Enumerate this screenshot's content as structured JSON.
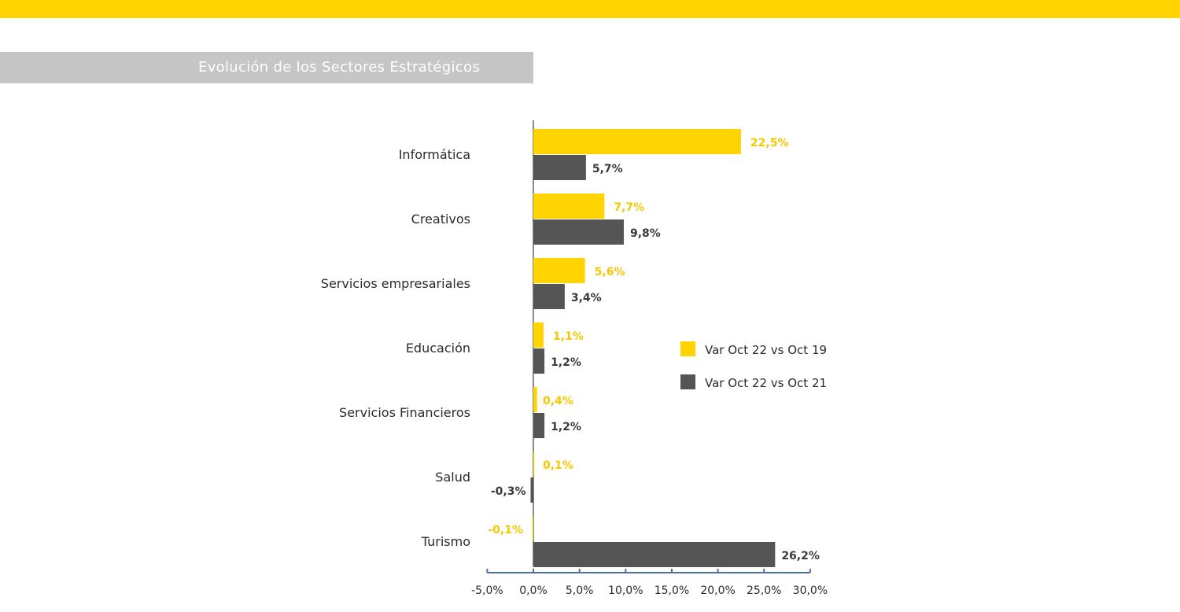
{
  "header": {
    "title": "Evolución de los Sectores Estratégicos"
  },
  "colors": {
    "brand": "#FFD400",
    "series1": "#FFD400",
    "series2": "#555555",
    "title_band": "#C6C6C6",
    "axis": "#4A6FA5"
  },
  "chart_data": {
    "type": "bar",
    "orientation": "horizontal",
    "title": "Evolución de los Sectores Estratégicos",
    "categories": [
      "Informática",
      "Creativos",
      "Servicios empresariales",
      "Educación",
      "Servicios Financieros",
      "Salud",
      "Turismo"
    ],
    "series": [
      {
        "name": "Var Oct 22 vs Oct 19",
        "values": [
          22.5,
          7.7,
          5.6,
          1.1,
          0.4,
          0.1,
          -0.1
        ],
        "labels": [
          "22,5%",
          "7,7%",
          "5,6%",
          "1,1%",
          "0,4%",
          "0,1%",
          "-0,1%"
        ]
      },
      {
        "name": "Var Oct 22 vs Oct 21",
        "values": [
          5.7,
          9.8,
          3.4,
          1.2,
          1.2,
          -0.3,
          26.2
        ],
        "labels": [
          "5,7%",
          "9,8%",
          "3,4%",
          "1,2%",
          "1,2%",
          "-0,3%",
          "26,2%"
        ]
      }
    ],
    "xlim": [
      -5,
      30
    ],
    "xticks": [
      -5,
      0,
      5,
      10,
      15,
      20,
      25,
      30
    ],
    "xtick_labels": [
      "-5,0%",
      "0,0%",
      "5,0%",
      "10,0%",
      "15,0%",
      "20,0%",
      "25,0%",
      "30,0%"
    ],
    "xlabel": "",
    "ylabel": "",
    "legend_position": "right",
    "grid": false
  }
}
